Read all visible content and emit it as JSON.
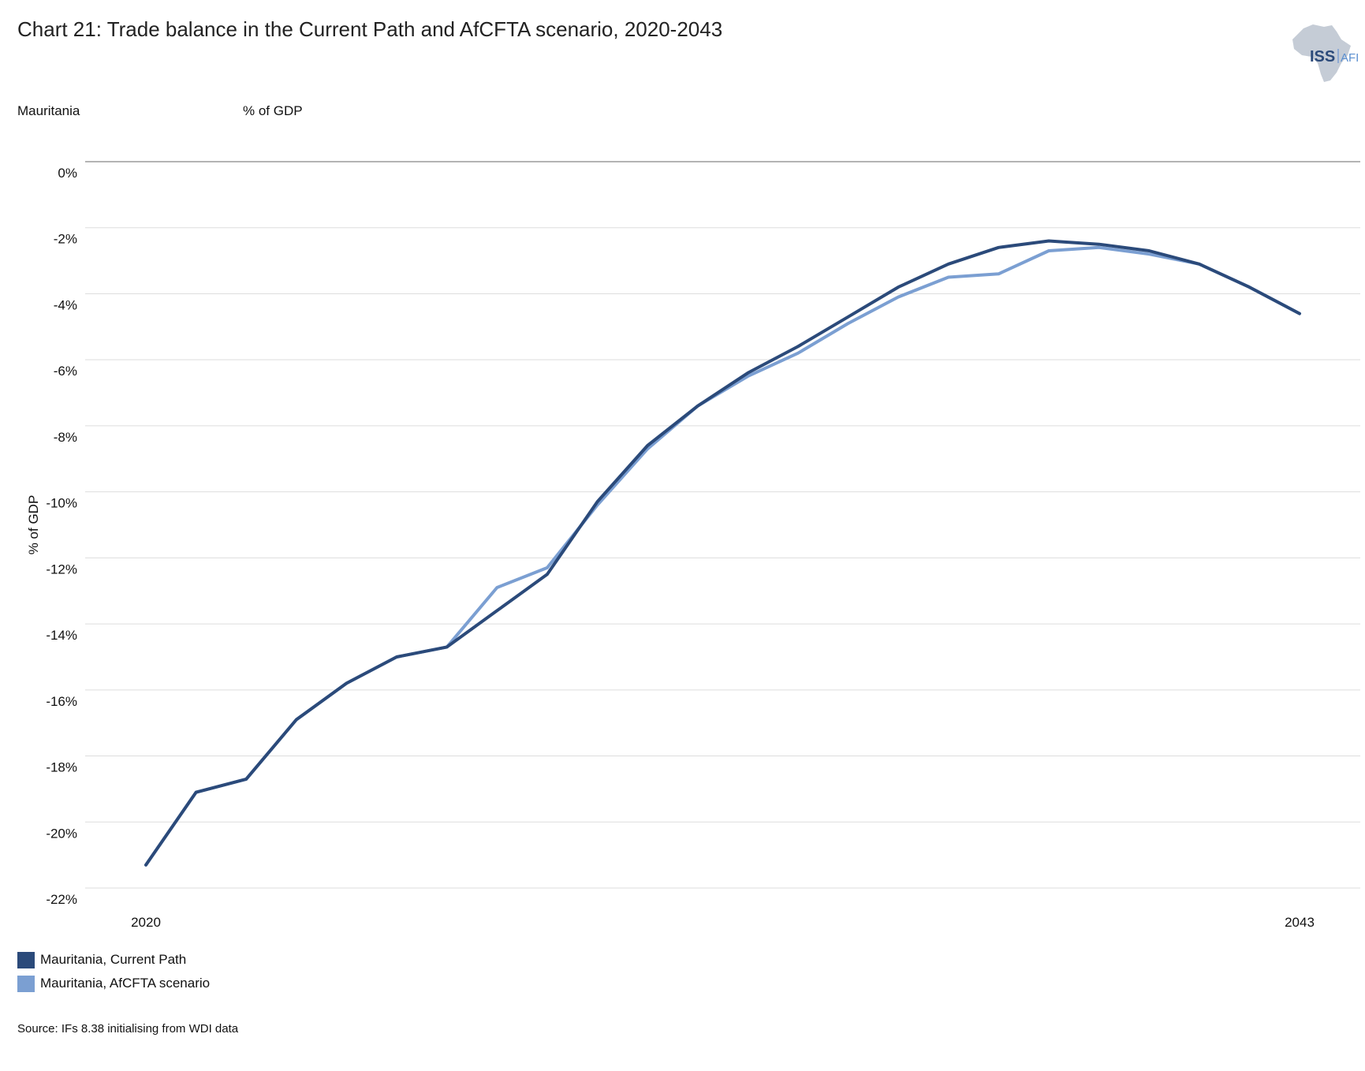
{
  "header": {
    "title": "Chart 21: Trade balance in the Current Path and AfCFTA scenario, 2020-2043",
    "country": "Mauritania",
    "unit": "% of GDP"
  },
  "logo": {
    "text_main": "ISS",
    "text_sub": "AFI"
  },
  "footer": {
    "source": "Source: IFs 8.38 initialising from WDI data"
  },
  "colors": {
    "current_path": "#2b4a7a",
    "afcfta": "#7b9fd2",
    "grid": "#dddddd",
    "axis": "#888888"
  },
  "chart_data": {
    "type": "line",
    "title": "Chart 21: Trade balance in the Current Path and AfCFTA scenario, 2020-2043",
    "ylabel": "% of GDP",
    "xlabel": "",
    "x": [
      2020,
      2021,
      2022,
      2023,
      2024,
      2025,
      2026,
      2027,
      2028,
      2029,
      2030,
      2031,
      2032,
      2033,
      2034,
      2035,
      2036,
      2037,
      2038,
      2039,
      2040,
      2041,
      2042,
      2043
    ],
    "x_tick_labels": [
      "2020",
      "2043"
    ],
    "y_ticks": [
      0,
      -2,
      -4,
      -6,
      -8,
      -10,
      -12,
      -14,
      -16,
      -18,
      -20,
      -22
    ],
    "y_tick_labels": [
      "0%",
      "-2%",
      "-4%",
      "-6%",
      "-8%",
      "-10%",
      "-12%",
      "-14%",
      "-16%",
      "-18%",
      "-20%",
      "-22%"
    ],
    "ylim": [
      -22,
      0
    ],
    "grid": true,
    "legend_position": "bottom-left",
    "series": [
      {
        "name": "Mauritania, Current Path",
        "color": "#2b4a7a",
        "values": [
          -21.3,
          -19.1,
          -18.7,
          -16.9,
          -15.8,
          -15.0,
          -14.7,
          -13.6,
          -12.5,
          -10.3,
          -8.6,
          -7.4,
          -6.4,
          -5.6,
          -4.7,
          -3.8,
          -3.1,
          -2.6,
          -2.4,
          -2.5,
          -2.7,
          -3.1,
          -3.8,
          -4.6
        ]
      },
      {
        "name": "Mauritania, AfCFTA scenario",
        "color": "#7b9fd2",
        "values": [
          -21.3,
          -19.1,
          -18.7,
          -16.9,
          -15.8,
          -15.0,
          -14.7,
          -12.9,
          -12.3,
          -10.4,
          -8.7,
          -7.4,
          -6.5,
          -5.8,
          -4.9,
          -4.1,
          -3.5,
          -3.4,
          -2.7,
          -2.6,
          -2.8,
          -3.1,
          -3.8,
          -4.6
        ]
      }
    ]
  }
}
